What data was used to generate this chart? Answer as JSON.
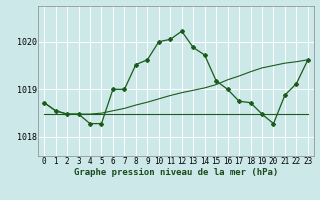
{
  "title": "Graphe pression niveau de la mer (hPa)",
  "bg_color": "#cce8e8",
  "grid_color": "#ffffff",
  "line_color": "#1a5c1a",
  "xlim": [
    -0.5,
    23.5
  ],
  "ylim": [
    1017.6,
    1020.75
  ],
  "yticks": [
    1018,
    1019,
    1020
  ],
  "xticks": [
    0,
    1,
    2,
    3,
    4,
    5,
    6,
    7,
    8,
    9,
    10,
    11,
    12,
    13,
    14,
    15,
    16,
    17,
    18,
    19,
    20,
    21,
    22,
    23
  ],
  "line1_x": [
    0,
    1,
    2,
    3,
    4,
    5,
    6,
    7,
    8,
    9,
    10,
    11,
    12,
    13,
    14,
    15,
    16,
    17,
    18,
    19,
    20,
    21,
    22,
    23
  ],
  "line1_y": [
    1018.72,
    1018.55,
    1018.48,
    1018.48,
    1018.48,
    1018.5,
    1018.55,
    1018.6,
    1018.67,
    1018.73,
    1018.8,
    1018.87,
    1018.93,
    1018.98,
    1019.03,
    1019.1,
    1019.2,
    1019.28,
    1019.37,
    1019.45,
    1019.5,
    1019.55,
    1019.58,
    1019.62
  ],
  "line2_x": [
    0,
    3,
    19,
    23
  ],
  "line2_y": [
    1018.48,
    1018.48,
    1018.48,
    1018.48
  ],
  "line3_x": [
    0,
    1,
    2,
    3,
    4,
    5,
    6,
    7,
    8,
    9,
    10,
    11,
    12,
    13,
    14,
    15,
    16,
    17,
    18,
    19,
    20,
    21,
    22,
    23
  ],
  "line3_y": [
    1018.72,
    1018.55,
    1018.48,
    1018.48,
    1018.28,
    1018.28,
    1019.0,
    1019.0,
    1019.52,
    1019.62,
    1020.0,
    1020.05,
    1020.22,
    1019.88,
    1019.72,
    1019.18,
    1019.0,
    1018.75,
    1018.72,
    1018.48,
    1018.28,
    1018.88,
    1019.12,
    1019.62
  ]
}
